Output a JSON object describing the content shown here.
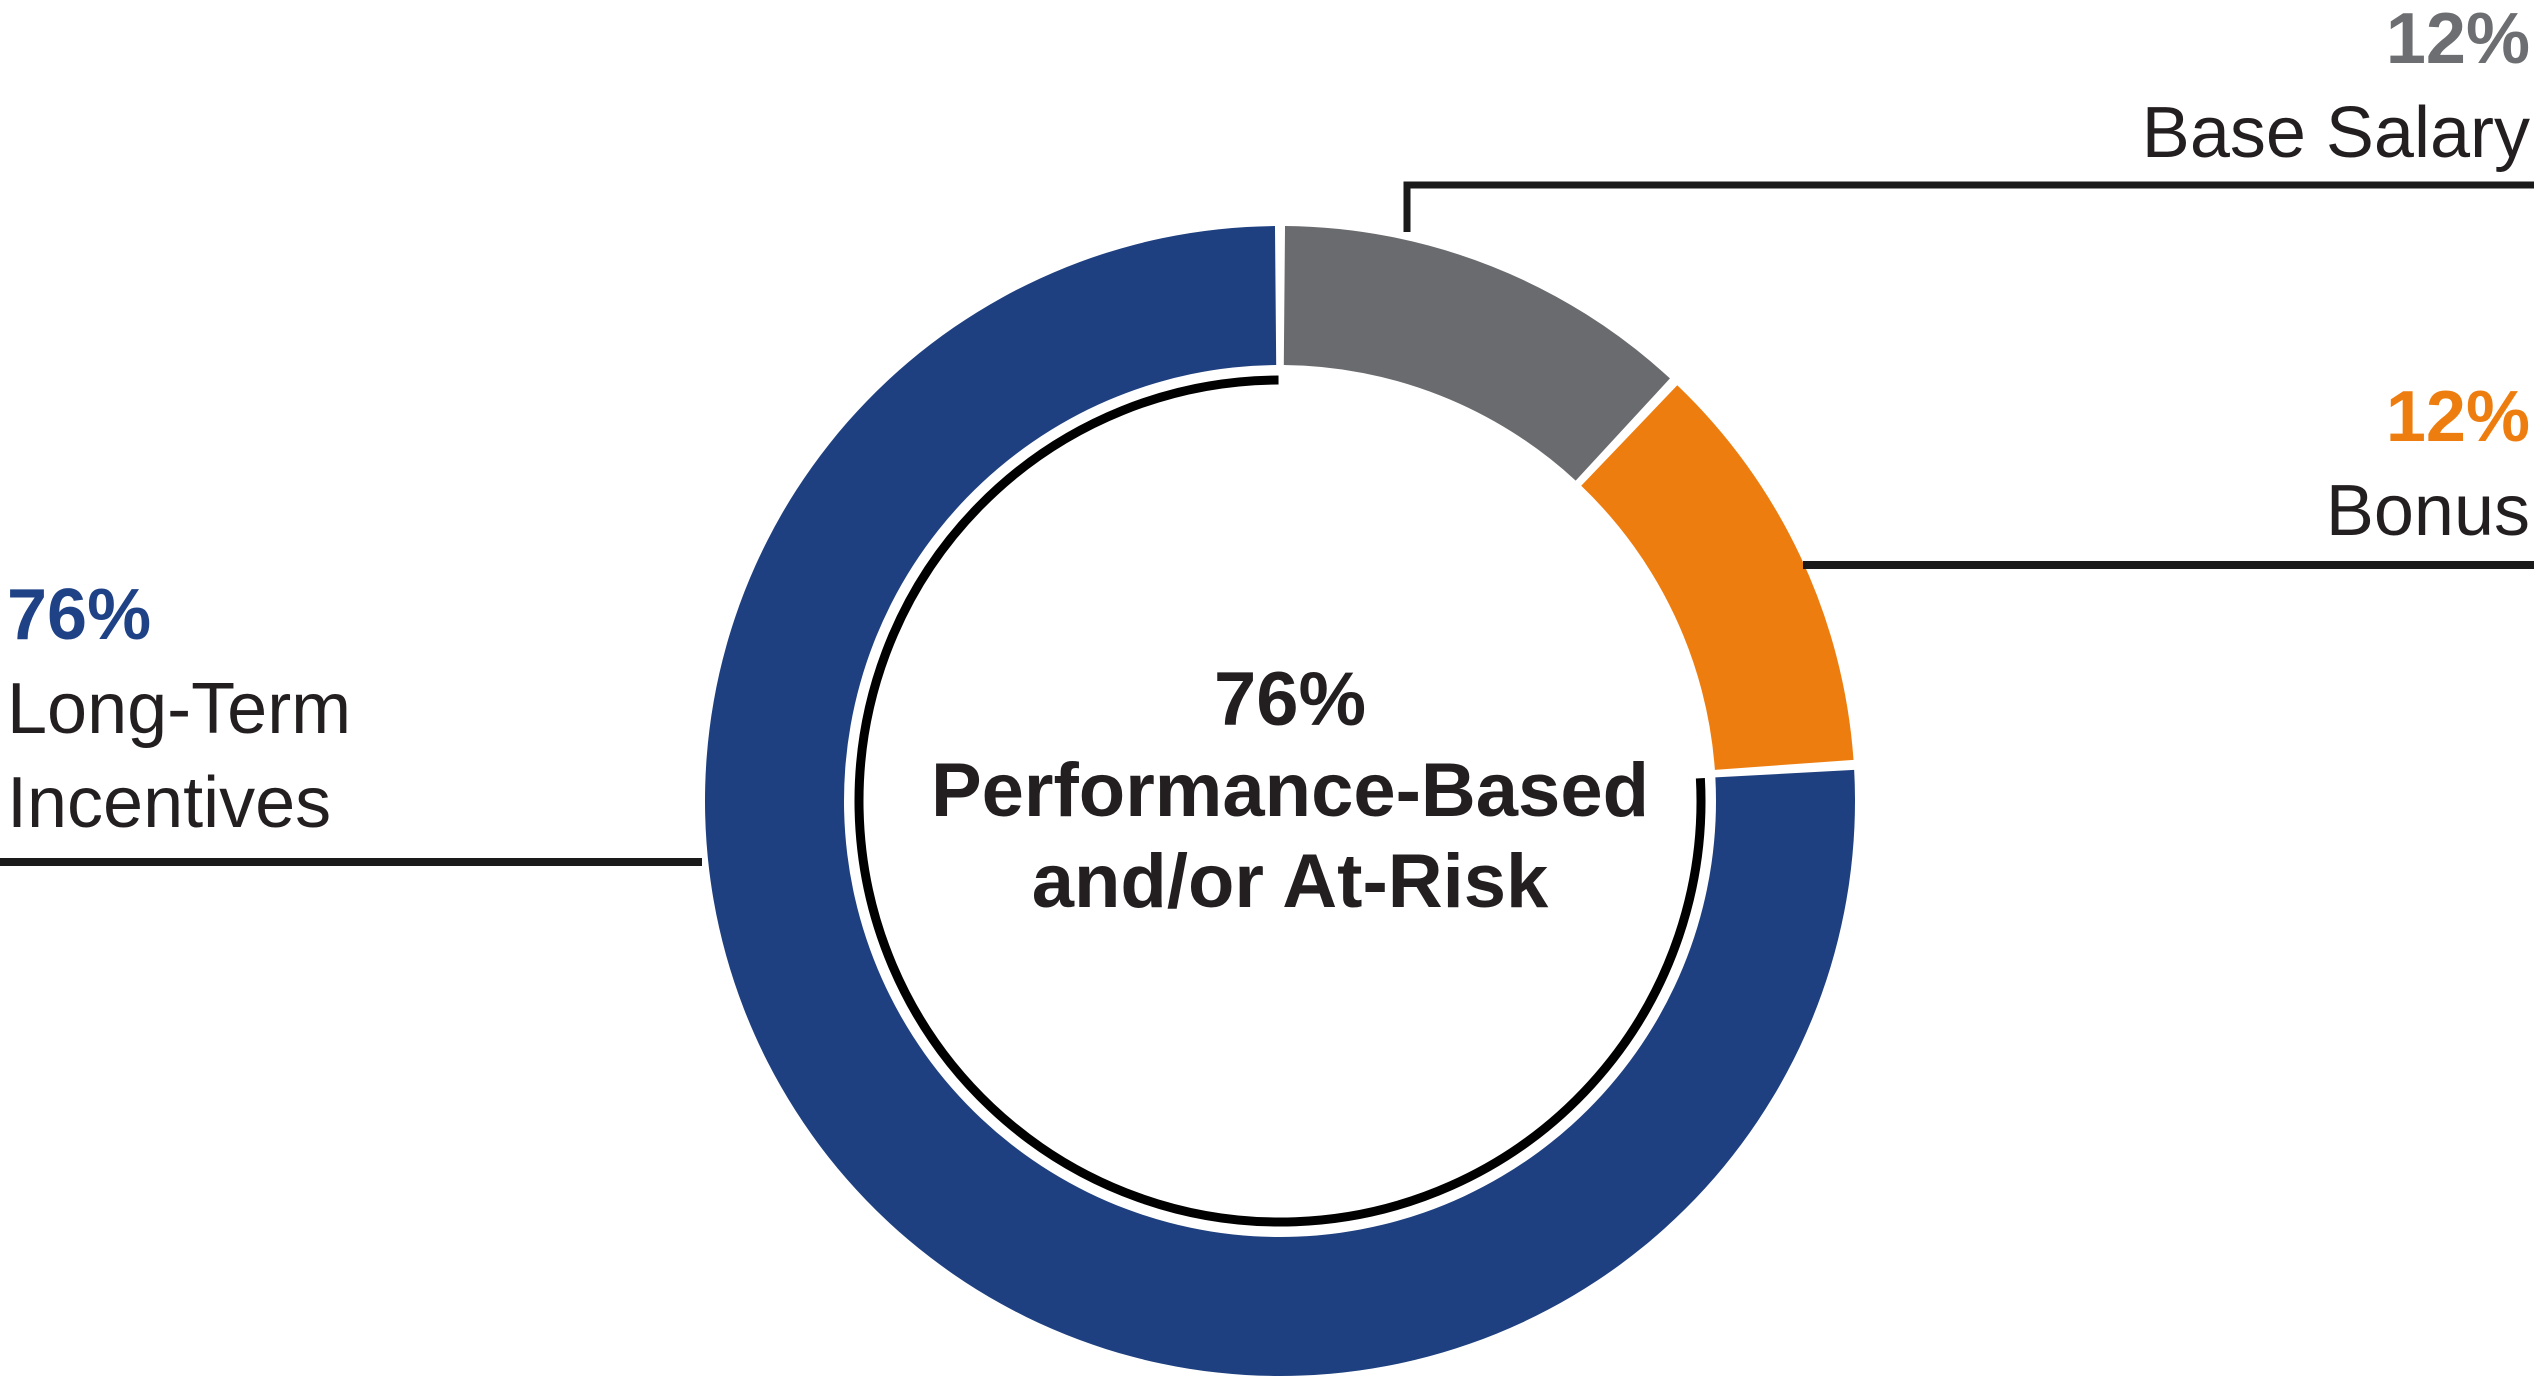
{
  "chart_data": {
    "type": "pie",
    "subtype": "donut",
    "title": "",
    "start_angle_deg": 0,
    "direction": "clockwise",
    "slices": [
      {
        "label": "Base Salary",
        "value": 12,
        "color": "#6A6B6E"
      },
      {
        "label": "Bonus",
        "value": 12,
        "color": "#EE7D0F"
      },
      {
        "label": "Long-Term Incentives",
        "value": 76,
        "color": "#1F4080"
      }
    ],
    "inner_arc": {
      "start_pct": 24,
      "end_pct": 100,
      "color": "#000000"
    },
    "center_label": {
      "line1": "76%",
      "line2": "Performance-Based",
      "line3": "and/or At-Risk"
    },
    "legend_position": "callouts",
    "leader_line_color": "#1A1A1A"
  },
  "callouts": {
    "base_salary": {
      "pct": "12%",
      "label": "Base Salary"
    },
    "bonus": {
      "pct": "12%",
      "label": "Bonus"
    },
    "long_term": {
      "pct": "76%",
      "label_line1": "Long-Term",
      "label_line2": "Incentives"
    }
  }
}
